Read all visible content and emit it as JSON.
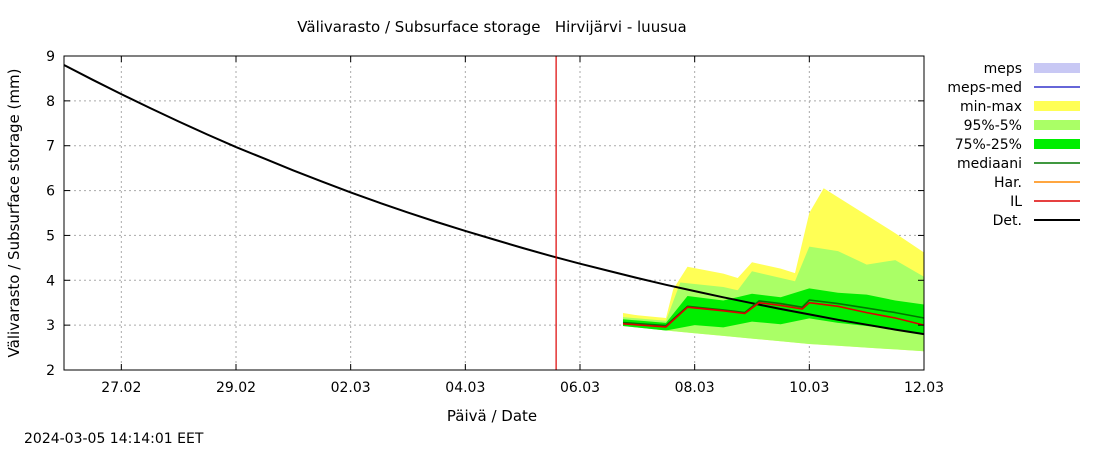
{
  "chart_data": {
    "type": "area",
    "title": "Välivarasto / Subsurface storage   Hirvijärvi - luusua",
    "xlabel": "Päivä / Date",
    "ylabel": "Välivarasto / Subsurface storage (mm)",
    "timestamp": "2024-03-05 14:14:01 EET",
    "x_range": [
      "2024-02-26",
      "2024-03-12"
    ],
    "ylim": [
      2,
      9
    ],
    "yticks": [
      "2",
      "3",
      "4",
      "5",
      "6",
      "7",
      "8",
      "9"
    ],
    "xtick_dates": [
      "2024-02-27",
      "2024-02-29",
      "2024-03-02",
      "2024-03-04",
      "2024-03-06",
      "2024-03-08",
      "2024-03-10",
      "2024-03-12"
    ],
    "xtick_labels": [
      "27.02",
      "29.02",
      "02.03",
      "04.03",
      "06.03",
      "08.03",
      "10.03",
      "12.03"
    ],
    "grid": true,
    "legend_position": "right",
    "now_marker": "2024-03-05 14:00",
    "legend": [
      {
        "label": "meps",
        "kind": "box",
        "color": "#c8c8f4"
      },
      {
        "label": "meps-med",
        "kind": "line",
        "color": "#3333cc"
      },
      {
        "label": "min-max",
        "kind": "box",
        "color": "#ffff55"
      },
      {
        "label": "95%-5%",
        "kind": "box",
        "color": "#aaff66"
      },
      {
        "label": "75%-25%",
        "kind": "box",
        "color": "#00ee00"
      },
      {
        "label": "mediaani",
        "kind": "line",
        "color": "#007700"
      },
      {
        "label": "Har.",
        "kind": "line",
        "color": "#ff8800"
      },
      {
        "label": "IL",
        "kind": "line",
        "color": "#dd0000"
      },
      {
        "label": "Det.",
        "kind": "line",
        "color": "#000000"
      }
    ],
    "series": [
      {
        "name": "Det.",
        "points": [
          [
            "2024-02-26 00:00",
            8.8
          ],
          [
            "2024-02-26 12:00",
            8.47
          ],
          [
            "2024-02-27 00:00",
            8.15
          ],
          [
            "2024-02-27 12:00",
            7.84
          ],
          [
            "2024-02-28 00:00",
            7.54
          ],
          [
            "2024-02-28 12:00",
            7.25
          ],
          [
            "2024-02-29 00:00",
            6.97
          ],
          [
            "2024-02-29 12:00",
            6.71
          ],
          [
            "2024-03-01 00:00",
            6.45
          ],
          [
            "2024-03-01 12:00",
            6.2
          ],
          [
            "2024-03-02 00:00",
            5.96
          ],
          [
            "2024-03-02 12:00",
            5.73
          ],
          [
            "2024-03-03 00:00",
            5.51
          ],
          [
            "2024-03-03 12:00",
            5.3
          ],
          [
            "2024-03-04 00:00",
            5.1
          ],
          [
            "2024-03-04 12:00",
            4.91
          ],
          [
            "2024-03-05 00:00",
            4.72
          ],
          [
            "2024-03-05 12:00",
            4.54
          ],
          [
            "2024-03-06 00:00",
            4.37
          ],
          [
            "2024-03-06 12:00",
            4.21
          ],
          [
            "2024-03-07 00:00",
            4.05
          ],
          [
            "2024-03-07 12:00",
            3.9
          ],
          [
            "2024-03-08 00:00",
            3.76
          ],
          [
            "2024-03-08 12:00",
            3.62
          ],
          [
            "2024-03-09 00:00",
            3.49
          ],
          [
            "2024-03-09 12:00",
            3.36
          ],
          [
            "2024-03-10 00:00",
            3.24
          ],
          [
            "2024-03-10 12:00",
            3.12
          ],
          [
            "2024-03-11 00:00",
            3.01
          ],
          [
            "2024-03-11 12:00",
            2.9
          ],
          [
            "2024-03-12 00:00",
            2.8
          ]
        ]
      },
      {
        "name": "min-max",
        "fill": "#ffff55",
        "upper": [
          [
            "2024-03-06 18:00",
            3.27
          ],
          [
            "2024-03-07 00:00",
            3.22
          ],
          [
            "2024-03-07 12:00",
            3.16
          ],
          [
            "2024-03-07 15:00",
            3.8
          ],
          [
            "2024-03-07 21:00",
            4.3
          ],
          [
            "2024-03-08 12:00",
            4.15
          ],
          [
            "2024-03-08 18:00",
            4.05
          ],
          [
            "2024-03-09 00:00",
            4.4
          ],
          [
            "2024-03-09 12:00",
            4.26
          ],
          [
            "2024-03-09 18:00",
            4.16
          ],
          [
            "2024-03-10 00:00",
            5.5
          ],
          [
            "2024-03-10 06:00",
            6.05
          ],
          [
            "2024-03-10 12:00",
            5.85
          ],
          [
            "2024-03-11 00:00",
            5.45
          ],
          [
            "2024-03-11 12:00",
            5.05
          ],
          [
            "2024-03-12 00:00",
            4.62
          ]
        ],
        "lower": [
          [
            "2024-03-06 18:00",
            2.98
          ],
          [
            "2024-03-07 12:00",
            2.88
          ],
          [
            "2024-03-08 00:00",
            2.82
          ],
          [
            "2024-03-08 12:00",
            2.76
          ],
          [
            "2024-03-09 00:00",
            2.7
          ],
          [
            "2024-03-09 12:00",
            2.64
          ],
          [
            "2024-03-10 00:00",
            2.58
          ],
          [
            "2024-03-10 12:00",
            2.54
          ],
          [
            "2024-03-11 00:00",
            2.5
          ],
          [
            "2024-03-11 12:00",
            2.46
          ],
          [
            "2024-03-12 00:00",
            2.42
          ]
        ]
      },
      {
        "name": "95%-5%",
        "fill": "#aaff66",
        "upper": [
          [
            "2024-03-06 18:00",
            3.18
          ],
          [
            "2024-03-07 12:00",
            3.1
          ],
          [
            "2024-03-07 18:00",
            3.95
          ],
          [
            "2024-03-08 12:00",
            3.85
          ],
          [
            "2024-03-08 18:00",
            3.78
          ],
          [
            "2024-03-09 00:00",
            4.2
          ],
          [
            "2024-03-09 18:00",
            3.98
          ],
          [
            "2024-03-10 00:00",
            4.75
          ],
          [
            "2024-03-10 12:00",
            4.65
          ],
          [
            "2024-03-11 00:00",
            4.35
          ],
          [
            "2024-03-11 12:00",
            4.45
          ],
          [
            "2024-03-12 00:00",
            4.08
          ]
        ],
        "lower": [
          [
            "2024-03-06 18:00",
            2.98
          ],
          [
            "2024-03-07 12:00",
            2.88
          ],
          [
            "2024-03-08 00:00",
            2.82
          ],
          [
            "2024-03-08 12:00",
            2.76
          ],
          [
            "2024-03-09 00:00",
            2.7
          ],
          [
            "2024-03-09 12:00",
            2.64
          ],
          [
            "2024-03-10 00:00",
            2.58
          ],
          [
            "2024-03-10 12:00",
            2.54
          ],
          [
            "2024-03-11 00:00",
            2.5
          ],
          [
            "2024-03-11 12:00",
            2.46
          ],
          [
            "2024-03-12 00:00",
            2.42
          ]
        ]
      },
      {
        "name": "75%-25%",
        "fill": "#00ee00",
        "upper": [
          [
            "2024-03-06 18:00",
            3.13
          ],
          [
            "2024-03-07 12:00",
            3.05
          ],
          [
            "2024-03-07 21:00",
            3.65
          ],
          [
            "2024-03-08 12:00",
            3.55
          ],
          [
            "2024-03-09 00:00",
            3.7
          ],
          [
            "2024-03-09 12:00",
            3.62
          ],
          [
            "2024-03-10 00:00",
            3.82
          ],
          [
            "2024-03-10 12:00",
            3.72
          ],
          [
            "2024-03-11 00:00",
            3.68
          ],
          [
            "2024-03-11 12:00",
            3.55
          ],
          [
            "2024-03-12 00:00",
            3.46
          ]
        ],
        "lower": [
          [
            "2024-03-06 18:00",
            2.98
          ],
          [
            "2024-03-07 12:00",
            2.88
          ],
          [
            "2024-03-08 00:00",
            3.0
          ],
          [
            "2024-03-08 12:00",
            2.95
          ],
          [
            "2024-03-09 00:00",
            3.08
          ],
          [
            "2024-03-09 12:00",
            3.02
          ],
          [
            "2024-03-10 00:00",
            3.15
          ],
          [
            "2024-03-10 12:00",
            3.05
          ],
          [
            "2024-03-11 00:00",
            2.98
          ],
          [
            "2024-03-11 12:00",
            2.9
          ],
          [
            "2024-03-12 00:00",
            2.82
          ]
        ]
      },
      {
        "name": "mediaani",
        "color": "#007700",
        "points": [
          [
            "2024-03-06 18:00",
            3.06
          ],
          [
            "2024-03-07 12:00",
            2.99
          ],
          [
            "2024-03-07 21:00",
            3.42
          ],
          [
            "2024-03-08 12:00",
            3.34
          ],
          [
            "2024-03-08 21:00",
            3.28
          ],
          [
            "2024-03-09 03:00",
            3.54
          ],
          [
            "2024-03-09 12:00",
            3.48
          ],
          [
            "2024-03-09 21:00",
            3.4
          ],
          [
            "2024-03-10 00:00",
            3.56
          ],
          [
            "2024-03-10 12:00",
            3.48
          ],
          [
            "2024-03-11 00:00",
            3.38
          ],
          [
            "2024-03-11 12:00",
            3.28
          ],
          [
            "2024-03-12 00:00",
            3.16
          ]
        ]
      },
      {
        "name": "IL",
        "color": "#dd0000",
        "points": [
          [
            "2024-03-06 18:00",
            3.03
          ],
          [
            "2024-03-07 12:00",
            2.96
          ],
          [
            "2024-03-07 21:00",
            3.4
          ],
          [
            "2024-03-08 12:00",
            3.32
          ],
          [
            "2024-03-08 21:00",
            3.26
          ],
          [
            "2024-03-09 03:00",
            3.5
          ],
          [
            "2024-03-09 12:00",
            3.44
          ],
          [
            "2024-03-09 21:00",
            3.36
          ],
          [
            "2024-03-10 00:00",
            3.5
          ],
          [
            "2024-03-10 12:00",
            3.42
          ],
          [
            "2024-03-11 00:00",
            3.28
          ],
          [
            "2024-03-11 12:00",
            3.16
          ],
          [
            "2024-03-12 00:00",
            3.0
          ]
        ]
      }
    ]
  }
}
